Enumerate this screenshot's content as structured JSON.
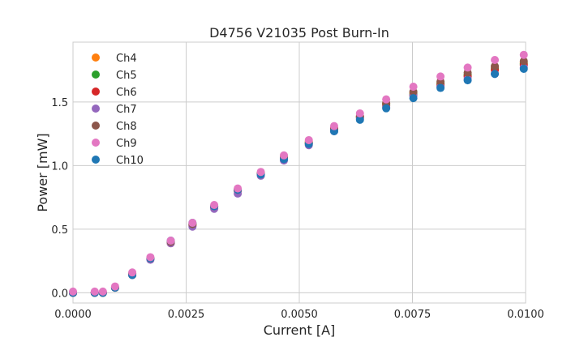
{
  "chart_data": {
    "type": "scatter",
    "title": "D4756 V21035 Post Burn-In",
    "xlabel": "Current [A]",
    "ylabel": "Power [mW]",
    "xlim": [
      0.0,
      0.01
    ],
    "ylim": [
      -0.08,
      1.97
    ],
    "grid": true,
    "legend_placement": "upper-left",
    "xticks": [
      0.0,
      0.0025,
      0.005,
      0.0075,
      0.01
    ],
    "xtick_labels": [
      "0.0000",
      "0.0025",
      "0.0050",
      "0.0075",
      "0.0100"
    ],
    "yticks": [
      0.0,
      0.5,
      1.0,
      1.5
    ],
    "ytick_labels": [
      "0.0",
      "0.5",
      "1.0",
      "1.5"
    ],
    "x": [
      0.0,
      0.00048,
      0.00066,
      0.00093,
      0.00131,
      0.00171,
      0.00216,
      0.00264,
      0.00312,
      0.00364,
      0.00415,
      0.00466,
      0.00521,
      0.00577,
      0.00634,
      0.00692,
      0.00752,
      0.00812,
      0.00872,
      0.00932,
      0.00996
    ],
    "series": [
      {
        "name": "Ch4",
        "color": "#ff7f0e",
        "values": [
          0.0,
          0.0,
          0.0,
          0.04,
          0.15,
          0.27,
          0.4,
          0.54,
          0.68,
          0.81,
          0.94,
          1.07,
          1.19,
          1.29,
          1.39,
          1.49,
          1.57,
          1.65,
          1.71,
          1.77,
          1.81
        ]
      },
      {
        "name": "Ch5",
        "color": "#2ca02c",
        "values": [
          0.0,
          0.0,
          0.0,
          0.04,
          0.15,
          0.27,
          0.4,
          0.54,
          0.68,
          0.81,
          0.94,
          1.06,
          1.18,
          1.28,
          1.38,
          1.48,
          1.56,
          1.64,
          1.71,
          1.76,
          1.8
        ]
      },
      {
        "name": "Ch6",
        "color": "#d62728",
        "values": [
          0.0,
          0.0,
          0.0,
          0.04,
          0.14,
          0.27,
          0.39,
          0.53,
          0.67,
          0.8,
          0.93,
          1.05,
          1.17,
          1.29,
          1.38,
          1.47,
          1.55,
          1.63,
          1.7,
          1.75,
          1.79
        ]
      },
      {
        "name": "Ch7",
        "color": "#9467bd",
        "values": [
          0.0,
          0.0,
          0.0,
          0.04,
          0.14,
          0.26,
          0.39,
          0.52,
          0.66,
          0.78,
          0.92,
          1.04,
          1.16,
          1.27,
          1.37,
          1.46,
          1.55,
          1.62,
          1.68,
          1.72,
          1.77
        ]
      },
      {
        "name": "Ch8",
        "color": "#8c564b",
        "values": [
          0.0,
          0.0,
          0.0,
          0.04,
          0.15,
          0.27,
          0.4,
          0.54,
          0.68,
          0.81,
          0.94,
          1.06,
          1.18,
          1.29,
          1.39,
          1.49,
          1.58,
          1.66,
          1.73,
          1.78,
          1.82
        ]
      },
      {
        "name": "Ch9",
        "color": "#e377c2",
        "values": [
          0.01,
          0.01,
          0.01,
          0.05,
          0.16,
          0.28,
          0.41,
          0.55,
          0.69,
          0.82,
          0.95,
          1.08,
          1.2,
          1.31,
          1.41,
          1.52,
          1.62,
          1.7,
          1.77,
          1.83,
          1.87
        ]
      },
      {
        "name": "Ch10",
        "color": "#1f77b4",
        "values": [
          0.0,
          0.0,
          0.0,
          0.04,
          0.14,
          0.27,
          0.41,
          0.55,
          0.68,
          0.81,
          0.93,
          1.05,
          1.17,
          1.27,
          1.36,
          1.45,
          1.53,
          1.61,
          1.67,
          1.72,
          1.76
        ]
      }
    ]
  }
}
